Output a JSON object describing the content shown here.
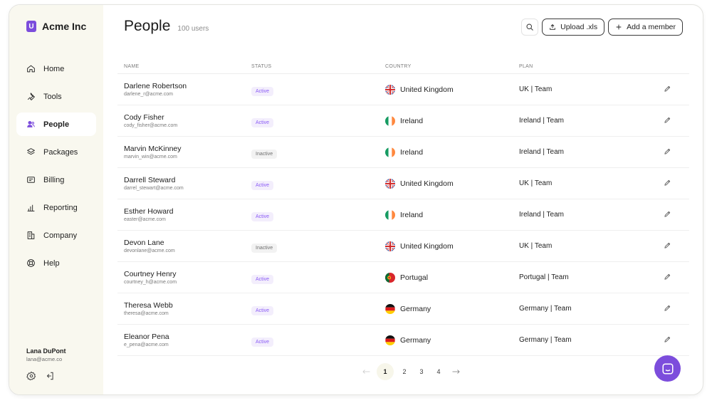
{
  "app": {
    "name": "Acme Inc",
    "logo_letter": "U",
    "accent": "#7c4ddc"
  },
  "sidebar": {
    "items": [
      {
        "label": "Home",
        "icon": "home-icon",
        "active": false
      },
      {
        "label": "Tools",
        "icon": "wrench-icon",
        "active": false
      },
      {
        "label": "People",
        "icon": "users-icon",
        "active": true
      },
      {
        "label": "Packages",
        "icon": "layers-icon",
        "active": false
      },
      {
        "label": "Billing",
        "icon": "receipt-icon",
        "active": false
      },
      {
        "label": "Reporting",
        "icon": "bar-chart-icon",
        "active": false
      },
      {
        "label": "Company",
        "icon": "building-icon",
        "active": false
      },
      {
        "label": "Help",
        "icon": "lifebuoy-icon",
        "active": false
      }
    ],
    "user": {
      "name": "Lana DuPont",
      "email": "lana@acme.co"
    }
  },
  "header": {
    "title": "People",
    "count": "100 users",
    "upload_label": "Upload .xls",
    "add_label": "Add a member"
  },
  "table": {
    "columns": [
      "NAME",
      "STATUS",
      "COUNTRY",
      "PLAN"
    ],
    "rows": [
      {
        "name": "Darlene Robertson",
        "email": "darlene_r@acme.com",
        "status": "Active",
        "country": "United Kingdom",
        "flag": "uk",
        "plan": "UK | Team"
      },
      {
        "name": "Cody Fisher",
        "email": "cody_fisher@acme.com",
        "status": "Active",
        "country": "Ireland",
        "flag": "ie",
        "plan": "Ireland | Team"
      },
      {
        "name": "Marvin McKinney",
        "email": "marvin_win@acme.com",
        "status": "Inactive",
        "country": "Ireland",
        "flag": "ie",
        "plan": "Ireland | Team"
      },
      {
        "name": "Darrell Steward",
        "email": "darrel_stewart@acme.com",
        "status": "Active",
        "country": "United Kingdom",
        "flag": "uk",
        "plan": "UK | Team"
      },
      {
        "name": "Esther Howard",
        "email": "easter@acme.com",
        "status": "Active",
        "country": "Ireland",
        "flag": "ie",
        "plan": "Ireland | Team"
      },
      {
        "name": "Devon Lane",
        "email": "devonlane@acme.com",
        "status": "Inactive",
        "country": "United Kingdom",
        "flag": "uk",
        "plan": "UK | Team"
      },
      {
        "name": "Courtney Henry",
        "email": "courtney_h@acme.com",
        "status": "Active",
        "country": "Portugal",
        "flag": "pt",
        "plan": "Portugal | Team"
      },
      {
        "name": "Theresa Webb",
        "email": "theresa@acme.com",
        "status": "Active",
        "country": "Germany",
        "flag": "de",
        "plan": "Germany | Team"
      },
      {
        "name": "Eleanor Pena",
        "email": "e_pena@acme.com",
        "status": "Active",
        "country": "Germany",
        "flag": "de",
        "plan": "Germany | Team"
      }
    ]
  },
  "pagination": {
    "pages": [
      "1",
      "2",
      "3",
      "4"
    ],
    "current": "1"
  }
}
